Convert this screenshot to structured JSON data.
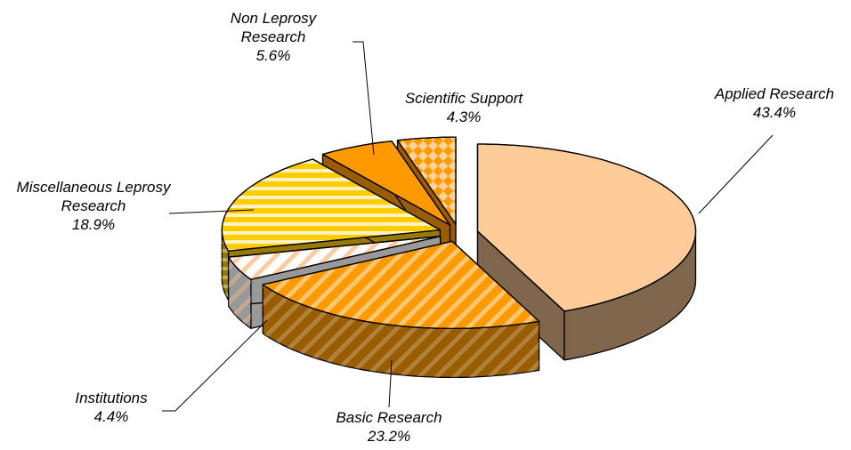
{
  "chart_data": {
    "type": "pie3d",
    "categories": [
      "Applied Research",
      "Basic Research",
      "Institutions",
      "Miscellaneous Leprosy Research",
      "Non Leprosy Research",
      "Scientific Support"
    ],
    "values": [
      43.4,
      23.2,
      4.4,
      18.9,
      5.6,
      4.3
    ],
    "value_labels": [
      "43.4%",
      "23.2%",
      "4.4%",
      "18.9%",
      "5.6%",
      "4.3%"
    ],
    "colors": [
      "#FFCC99",
      "#FF9900",
      "#FFFFFF",
      "#FFCC00",
      "#FF9900",
      "#FF9900"
    ]
  }
}
